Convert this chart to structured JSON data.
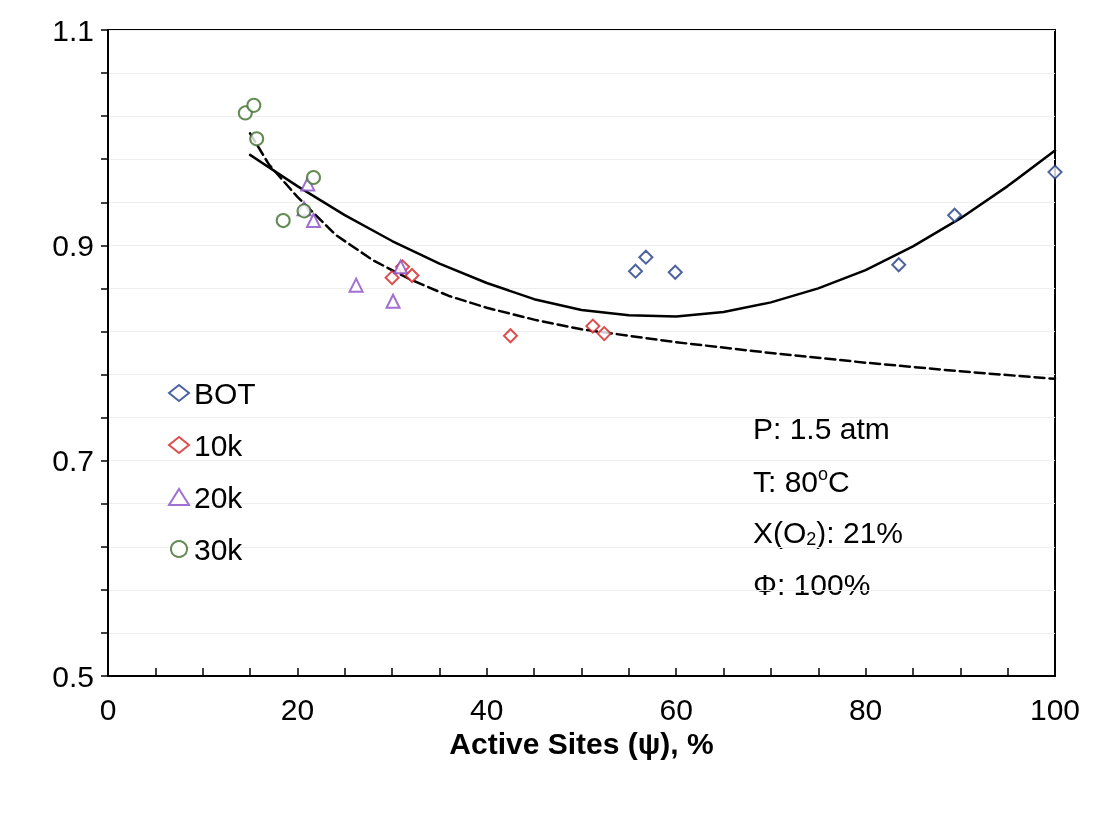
{
  "chart_data": {
    "type": "scatter",
    "xlabel": "Active Sites (ψ), %",
    "xlim": [
      0,
      100
    ],
    "xticks": [
      0,
      {
        "value": 5,
        "label": null
      },
      {
        "value": 10,
        "label": null
      },
      {
        "value": 15,
        "label": null
      },
      20,
      {
        "value": 25,
        "label": null
      },
      {
        "value": 30,
        "label": null
      },
      {
        "value": 35,
        "label": null
      },
      40,
      {
        "value": 45,
        "label": null
      },
      {
        "value": 50,
        "label": null
      },
      {
        "value": 55,
        "label": null
      },
      60,
      {
        "value": 65,
        "label": null
      },
      {
        "value": 70,
        "label": null
      },
      {
        "value": 75,
        "label": null
      },
      80,
      {
        "value": 85,
        "label": null
      },
      {
        "value": 90,
        "label": null
      },
      {
        "value": 95,
        "label": null
      },
      100
    ],
    "ylim": [
      0.5,
      1.1
    ],
    "yticks": [
      0.5,
      {
        "value": 0.54,
        "label": null
      },
      {
        "value": 0.58,
        "label": null
      },
      {
        "value": 0.62,
        "label": null
      },
      {
        "value": 0.66,
        "label": null
      },
      0.7,
      {
        "value": 0.74,
        "label": null
      },
      {
        "value": 0.78,
        "label": null
      },
      {
        "value": 0.82,
        "label": null
      },
      {
        "value": 0.86,
        "label": null
      },
      0.9,
      {
        "value": 0.94,
        "label": null
      },
      {
        "value": 0.98,
        "label": null
      },
      {
        "value": 1.02,
        "label": null
      },
      {
        "value": 1.06,
        "label": null
      },
      1.1
    ],
    "grid": "y",
    "legend": "left",
    "series": [
      {
        "name": "BOT",
        "color": "#1f3c88",
        "marker": "diamond",
        "x": [
          55.7,
          56.8,
          59.9,
          83.5,
          89.4,
          100
        ],
        "values": [
          0.876,
          0.889,
          0.875,
          0.882,
          0.928,
          0.968
        ]
      },
      {
        "name": "10k",
        "color": "#d42020",
        "marker": "diamond",
        "x": [
          30.0,
          31.1,
          32.1,
          42.5,
          51.2,
          52.4
        ],
        "values": [
          0.87,
          0.88,
          0.872,
          0.816,
          0.825,
          0.818
        ]
      },
      {
        "name": "20k",
        "color": "#8a4cc8",
        "marker": "triangle",
        "x": [
          21.1,
          20.7,
          21.7,
          26.2,
          30.1,
          30.9
        ],
        "values": [
          0.957,
          0.934,
          0.923,
          0.863,
          0.848,
          0.88
        ]
      },
      {
        "name": "30k",
        "color": "#3f6e2a",
        "marker": "circle",
        "x": [
          14.5,
          15.4,
          15.7,
          21.7,
          18.5,
          20.7
        ],
        "values": [
          1.023,
          1.03,
          0.999,
          0.963,
          0.923,
          0.932
        ]
      },
      {
        "type": "line",
        "color": "#000000",
        "marker": "none",
        "line_style": "solid",
        "x": [
          15,
          20,
          25,
          30,
          35,
          40,
          45,
          50,
          55,
          60,
          65,
          70,
          75,
          80,
          85,
          90,
          95,
          100
        ],
        "values": [
          0.984,
          0.955,
          0.928,
          0.904,
          0.883,
          0.865,
          0.85,
          0.84,
          0.835,
          0.834,
          0.838,
          0.847,
          0.86,
          0.877,
          0.899,
          0.925,
          0.955,
          0.988
        ]
      },
      {
        "type": "line",
        "color": "#000000",
        "marker": "none",
        "line_style": "dashed",
        "x": [
          15,
          17,
          20,
          24,
          28,
          32,
          36,
          40,
          45,
          50,
          60,
          70,
          80,
          90,
          100
        ],
        "values": [
          1.004,
          0.975,
          0.945,
          0.91,
          0.886,
          0.868,
          0.853,
          0.842,
          0.831,
          0.822,
          0.81,
          0.8,
          0.791,
          0.783,
          0.776
        ]
      }
    ],
    "annotations": [
      "P: 1.5 atm",
      "T: 80$^{o}$C",
      "X(O$_{2}$): 21%",
      "Φ: 100%"
    ]
  }
}
